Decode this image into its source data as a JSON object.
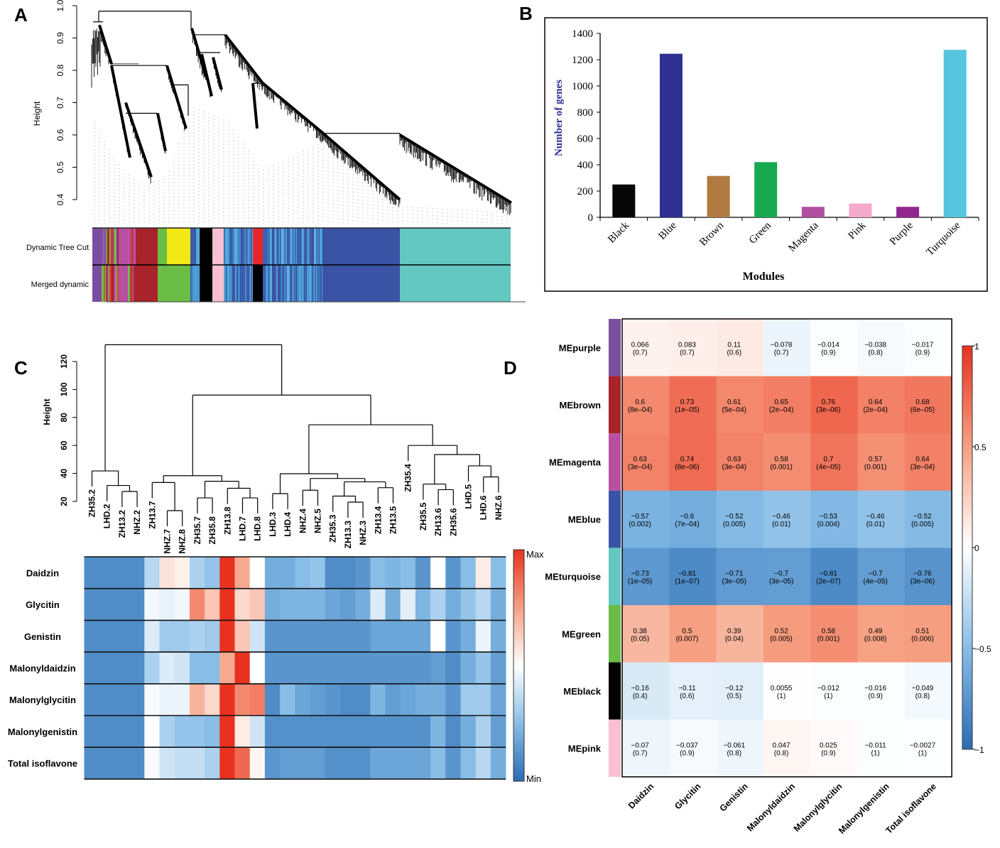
{
  "panels": {
    "A": "A",
    "B": "B",
    "C": "C",
    "D": "D"
  },
  "chart_data": [
    {
      "type": "dendrogram",
      "panel": "A",
      "ylabel": "Height",
      "yticks": [
        "0.4",
        "0.5",
        "0.6",
        "0.7",
        "0.8",
        "0.9",
        "1.0"
      ],
      "ylim": [
        0.35,
        1.0
      ],
      "row_labels": [
        "Dynamic Tree Cut",
        "Merged dynamic"
      ],
      "module_colors": {
        "purple": "#7b4fa0",
        "magenta": "#b84fa0",
        "brown": "#a8232a",
        "green": "#6abd45",
        "yellow": "#f2e816",
        "black": "#000000",
        "pink": "#f7bfcf",
        "red": "#e8262a",
        "blue": "#3a53a4",
        "turquoise": "#63c8c1"
      }
    },
    {
      "type": "bar",
      "panel": "B",
      "categories": [
        "Black",
        "Blue",
        "Brown",
        "Green",
        "Magenta",
        "Pink",
        "Purple",
        "Turquoise"
      ],
      "values": [
        250,
        1245,
        315,
        420,
        80,
        105,
        80,
        1275
      ],
      "colors": [
        "#070707",
        "#2e3192",
        "#b07a40",
        "#17a84f",
        "#b04fa0",
        "#f5a9cb",
        "#92278f",
        "#55c5e0"
      ],
      "xlabel": "Modules",
      "ylabel": "Number of genes",
      "ylabel_color": "#2e3192",
      "ylim": [
        0,
        1400
      ],
      "yticks": [
        0,
        200,
        400,
        600,
        800,
        1000,
        1200,
        1400
      ]
    },
    {
      "type": "heatmap",
      "panel": "C",
      "ylabel": "Height",
      "yticks": [
        20,
        40,
        60,
        80,
        100,
        120
      ],
      "leaves": [
        "ZH35.2",
        "LHD.2",
        "ZH13.2",
        "NHZ.2",
        "ZH13.7",
        "NHZ.7",
        "NHZ.8",
        "ZH35.7",
        "ZH35.8",
        "ZH13.8",
        "LHD.7",
        "LHD.8",
        "LHD.3",
        "LHD.4",
        "NHZ.4",
        "NHZ.5",
        "ZH35.3",
        "ZH13.3",
        "NHZ.3",
        "ZH13.4",
        "ZH13.5",
        "ZH35.4",
        "ZH35.5",
        "ZH13.6",
        "ZH35.6",
        "LHD.5",
        "LHD.6",
        "NHZ.6"
      ],
      "tree": {
        "h": 132,
        "c": [
          {
            "h": 41.8,
            "c": [
              "ZH35.2",
              {
                "h": 31.4,
                "c": [
                  "LHD.2",
                  {
                    "h": 27.1,
                    "c": [
                      "ZH13.2",
                      "NHZ.2"
                    ]
                  }
                ]
              }
            ]
          },
          {
            "h": 96,
            "c": [
              {
                "h": 38.4,
                "c": [
                  {
                    "h": 33.5,
                    "c": [
                      "ZH13.7",
                      {
                        "h": 13.4,
                        "c": [
                          "NHZ.7",
                          "NHZ.8"
                        ]
                      }
                    ]
                  },
                  {
                    "h": 34.4,
                    "c": [
                      {
                        "h": 22.5,
                        "c": [
                          "ZH35.7",
                          "ZH35.8"
                        ]
                      },
                      {
                        "h": 29.4,
                        "c": [
                          "ZH13.8",
                          {
                            "h": 22.5,
                            "c": [
                              "LHD.7",
                              "LHD.8"
                            ]
                          }
                        ]
                      }
                    ]
                  }
                ]
              },
              {
                "h": 74.8,
                "c": [
                  {
                    "h": 39.8,
                    "c": [
                      {
                        "h": 25.6,
                        "c": [
                          "LHD.3",
                          "LHD.4"
                        ]
                      },
                      {
                        "h": 36.4,
                        "c": [
                          {
                            "h": 28,
                            "c": [
                              "NHZ.4",
                              "NHZ.5"
                            ]
                          },
                          {
                            "h": 34,
                            "c": [
                              {
                                "h": 23.8,
                                "c": [
                                  "ZH35.3",
                                  {
                                    "h": 19.5,
                                    "c": [
                                      "ZH13.3",
                                      "NHZ.3"
                                    ]
                                  }
                                ]
                              },
                              {
                                "h": 29.8,
                                "c": [
                                  "ZH13.4",
                                  "ZH13.5"
                                ]
                              }
                            ]
                          }
                        ]
                      }
                    ]
                  },
                  {
                    "h": 60,
                    "c": [
                      "ZH35.4",
                      {
                        "h": 53.5,
                        "c": [
                          {
                            "h": 32.4,
                            "c": [
                              "ZH35.5",
                              {
                                "h": 28.4,
                                "c": [
                                  "ZH13.6",
                                  "ZH35.6"
                                ]
                              }
                            ]
                          },
                          {
                            "h": 45.4,
                            "c": [
                              "LHD.5",
                              {
                                "h": 37.5,
                                "c": [
                                  "LHD.6",
                                  "NHZ.6"
                                ]
                              }
                            ]
                          }
                        ]
                      }
                    ]
                  }
                ]
              }
            ]
          }
        ]
      },
      "rows": [
        "Daidzin",
        "Glycitin",
        "Genistin",
        "Malonyldaidzin",
        "Malonylglycitin",
        "Malonylgenistin",
        "Total isoflavone"
      ],
      "values": [
        [
          -0.8,
          -0.8,
          -0.8,
          -0.8,
          -0.3,
          0.15,
          0.08,
          -0.35,
          -0.45,
          1,
          0.45,
          0,
          -0.6,
          -0.6,
          -0.5,
          -0.45,
          -0.8,
          -0.8,
          -0.75,
          -0.5,
          -0.55,
          -0.5,
          -0.75,
          0,
          -0.75,
          -0.5,
          0.1,
          -0.5
        ],
        [
          -0.8,
          -0.8,
          -0.8,
          -0.8,
          -0.05,
          -0.1,
          -0.05,
          0.6,
          0.3,
          1,
          0.2,
          0.3,
          -0.6,
          -0.55,
          -0.55,
          -0.55,
          -0.65,
          -0.7,
          -0.6,
          -0.15,
          -0.6,
          -0.12,
          -0.55,
          -0.35,
          -0.6,
          -0.45,
          -0.3,
          -0.6
        ],
        [
          -0.8,
          -0.8,
          -0.8,
          -0.8,
          -0.15,
          -0.4,
          -0.4,
          -0.35,
          -0.4,
          1,
          0.3,
          -0.2,
          -0.75,
          -0.75,
          -0.75,
          -0.75,
          -0.75,
          -0.75,
          -0.75,
          -0.65,
          -0.65,
          -0.65,
          -0.65,
          0,
          -0.75,
          -0.6,
          -0.08,
          -0.6
        ],
        [
          -0.8,
          -0.8,
          -0.8,
          -0.8,
          -0.35,
          -0.15,
          -0.2,
          -0.5,
          -0.5,
          0.45,
          1,
          0,
          -0.75,
          -0.75,
          -0.75,
          -0.75,
          -0.75,
          -0.75,
          -0.75,
          -0.75,
          -0.75,
          -0.75,
          -0.75,
          -0.7,
          -0.8,
          -0.6,
          -0.45,
          -0.7
        ],
        [
          -0.8,
          -0.8,
          -0.8,
          -0.8,
          -0.03,
          -0.08,
          -0.08,
          0.4,
          0.2,
          1,
          0.6,
          0.65,
          -0.8,
          -0.5,
          -0.65,
          -0.7,
          -0.75,
          -0.8,
          -0.8,
          -0.55,
          -0.7,
          -0.65,
          -0.6,
          -0.6,
          -0.75,
          -0.4,
          -0.4,
          -0.65
        ],
        [
          -0.8,
          -0.8,
          -0.8,
          -0.8,
          0,
          -0.35,
          -0.45,
          -0.45,
          -0.5,
          1,
          0.1,
          -0.2,
          -0.78,
          -0.78,
          -0.78,
          -0.78,
          -0.78,
          -0.78,
          -0.78,
          -0.78,
          -0.78,
          -0.78,
          -0.78,
          -0.55,
          -0.8,
          -0.6,
          -0.35,
          -0.7
        ],
        [
          -0.8,
          -0.8,
          -0.8,
          -0.8,
          -0.03,
          -0.2,
          -0.25,
          -0.25,
          -0.35,
          1,
          0.75,
          0.05,
          -0.75,
          -0.7,
          -0.7,
          -0.7,
          -0.78,
          -0.78,
          -0.78,
          -0.65,
          -0.65,
          -0.65,
          -0.65,
          -0.5,
          -0.75,
          -0.5,
          -0.3,
          -0.6
        ]
      ],
      "legend_max": "Max",
      "legend_min": "Min"
    },
    {
      "type": "heatmap",
      "panel": "D",
      "rows": [
        "MEpurple",
        "MEbrown",
        "MEmagenta",
        "MEblue",
        "MEturquoise",
        "MEgreen",
        "MEblack",
        "MEpink"
      ],
      "row_colors": [
        "#7b4fa0",
        "#a8232a",
        "#b84fa0",
        "#3a53a4",
        "#63c8c1",
        "#6abd45",
        "#000000",
        "#f7bfcf"
      ],
      "columns": [
        "Daidzin",
        "Glycitin",
        "Genistin",
        "Malonyldaidzin",
        "Malonylglycitin",
        "Malonylgenistin",
        "Total isoflavone"
      ],
      "r": [
        [
          0.066,
          0.083,
          0.11,
          -0.078,
          -0.014,
          -0.038,
          -0.017
        ],
        [
          0.6,
          0.73,
          0.61,
          0.65,
          0.76,
          0.64,
          0.68
        ],
        [
          0.63,
          0.74,
          0.63,
          0.58,
          0.7,
          0.57,
          0.64
        ],
        [
          -0.57,
          -0.6,
          -0.52,
          -0.46,
          -0.53,
          -0.46,
          -0.52
        ],
        [
          -0.73,
          -0.81,
          -0.71,
          -0.7,
          -0.81,
          -0.7,
          -0.76
        ],
        [
          0.38,
          0.5,
          0.39,
          0.52,
          0.58,
          0.49,
          0.51
        ],
        [
          -0.16,
          -0.11,
          -0.12,
          0.0055,
          -0.012,
          -0.016,
          -0.049
        ],
        [
          -0.07,
          -0.037,
          -0.061,
          0.047,
          0.025,
          -0.011,
          -0.0027
        ]
      ],
      "p": [
        [
          "0.7",
          "0.7",
          "0.6",
          "0.7",
          "0.9",
          "0.8",
          "0.9"
        ],
        [
          "8e-04",
          "1e-05",
          "5e-04",
          "2e-04",
          "3e-06",
          "2e-04",
          "6e-05"
        ],
        [
          "3e-04",
          "8e-06",
          "3e-04",
          "0.001",
          "4e-05",
          "0.001",
          "3e-04"
        ],
        [
          "0.002",
          "7e-04",
          "0.005",
          "0.01",
          "0.004",
          "0.01",
          "0.005"
        ],
        [
          "1e-05",
          "1e-07",
          "3e-05",
          "3e-05",
          "2e-07",
          "4e-05",
          "3e-06"
        ],
        [
          "0.05",
          "0.007",
          "0.04",
          "0.005",
          "0.001",
          "0.008",
          "0.006"
        ],
        [
          "0.4",
          "0.6",
          "0.5",
          "1",
          "1",
          "0.9",
          "0.8"
        ],
        [
          "0.7",
          "0.9",
          "0.8",
          "0.8",
          "0.9",
          "1",
          "1"
        ]
      ],
      "colorbar_ticks": [
        1,
        0.5,
        0,
        -0.5,
        -1
      ],
      "colorbar_tick_labels": [
        "1",
        "0.5",
        "0",
        "−0.5",
        "−1"
      ]
    }
  ]
}
